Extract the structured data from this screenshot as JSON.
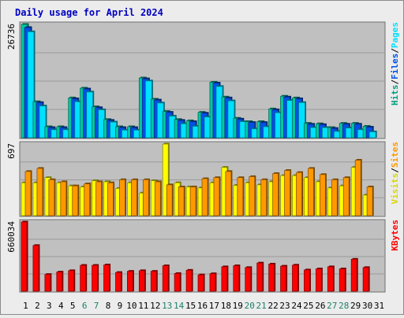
{
  "chart_data": {
    "type": "bar",
    "title": "Daily usage for April 2024",
    "categories": [
      "1",
      "2",
      "3",
      "4",
      "5",
      "6",
      "7",
      "8",
      "9",
      "10",
      "11",
      "12",
      "13",
      "14",
      "15",
      "16",
      "17",
      "18",
      "19",
      "20",
      "21",
      "22",
      "23",
      "24",
      "25",
      "26",
      "27",
      "28",
      "29",
      "30",
      "31"
    ],
    "weekend_days": [
      "6",
      "7",
      "13",
      "14",
      "20",
      "21",
      "27",
      "28"
    ],
    "grid": true,
    "legend_position": "right",
    "colors": {
      "title": "#0000c0",
      "day_label": "#0000a0",
      "weekend_label": "#20806a",
      "panel_bg": "#c0c0c0",
      "hits": "#00c8a0",
      "files": "#0050e8",
      "pages": "#00e0ff",
      "visits": "#ffff00",
      "sites": "#ff9900",
      "kbytes": "#ff0000"
    },
    "panels": [
      {
        "id": "usage",
        "max_label": "26736",
        "ylim": [
          0,
          26736
        ],
        "legend": [
          {
            "text": "Hits",
            "color": "#00a080"
          },
          {
            "text": "/",
            "color": "#000000"
          },
          {
            "text": "Files",
            "color": "#0050e8"
          },
          {
            "text": "/",
            "color": "#000000"
          },
          {
            "text": "Pages",
            "color": "#00e0ff"
          }
        ],
        "series": [
          {
            "name": "Hits",
            "color": "#00c8a0",
            "values": [
              26736,
              8500,
              2600,
              2600,
              9400,
              11700,
              7300,
              4300,
              2600,
              2600,
              14100,
              9100,
              6200,
              4300,
              4000,
              6000,
              13100,
              9600,
              4600,
              3800,
              3800,
              6800,
              9800,
              9400,
              3400,
              3300,
              2400,
              3400,
              3400,
              2700,
              0
            ]
          },
          {
            "name": "Files",
            "color": "#0050e8",
            "values": [
              26000,
              8300,
              2400,
              2400,
              9200,
              11500,
              7100,
              4100,
              2400,
              2400,
              13900,
              8900,
              6000,
              4100,
              3800,
              5800,
              12900,
              9400,
              4400,
              3600,
              3600,
              6600,
              9600,
              9200,
              3200,
              3100,
              2200,
              3200,
              3200,
              2500,
              0
            ]
          },
          {
            "name": "Pages",
            "color": "#00e0ff",
            "values": [
              25000,
              7500,
              1900,
              1900,
              8500,
              10800,
              6600,
              3700,
              1800,
              1800,
              13400,
              8200,
              5100,
              3300,
              2700,
              4900,
              12100,
              8700,
              3800,
              2100,
              2600,
              5900,
              8800,
              8300,
              2400,
              2400,
              1500,
              2300,
              1900,
              1400,
              0
            ]
          }
        ]
      },
      {
        "id": "visitors",
        "max_label": "697",
        "ylim": [
          0,
          697
        ],
        "legend": [
          {
            "text": "Visits",
            "color": "#d8d800"
          },
          {
            "text": "/",
            "color": "#000000"
          },
          {
            "text": "Sites",
            "color": "#ff9900"
          }
        ],
        "series": [
          {
            "name": "Visits",
            "color": "#ffff00",
            "values": [
              320,
              320,
              370,
              320,
              290,
              280,
              340,
              330,
              265,
              320,
              220,
              340,
              697,
              320,
              280,
              270,
              320,
              470,
              295,
              320,
              300,
              330,
              390,
              390,
              370,
              330,
              270,
              290,
              470,
              200,
              0
            ]
          },
          {
            "name": "Sites",
            "color": "#ff9900",
            "values": [
              430,
              460,
              350,
              330,
              290,
              310,
              330,
              320,
              350,
              350,
              350,
              330,
              300,
              280,
              280,
              360,
              370,
              430,
              370,
              380,
              350,
              410,
              440,
              420,
              460,
              400,
              350,
              370,
              540,
              280,
              0
            ]
          }
        ]
      },
      {
        "id": "kbytes",
        "max_label": "660034",
        "ylim": [
          0,
          660034
        ],
        "legend": [
          {
            "text": "KBytes",
            "color": "#ff0000"
          }
        ],
        "series": [
          {
            "name": "KBytes",
            "color": "#ff0000",
            "values": [
              660034,
              436000,
              160000,
              183000,
              196000,
              247000,
              247000,
              251000,
              179000,
              190000,
              196000,
              190000,
              243000,
              169000,
              200000,
              156000,
              167000,
              233000,
              243000,
              226000,
              269000,
              259000,
              239000,
              249000,
              203000,
              213000,
              233000,
              213000,
              305000,
              226000,
              0
            ]
          }
        ]
      }
    ]
  }
}
